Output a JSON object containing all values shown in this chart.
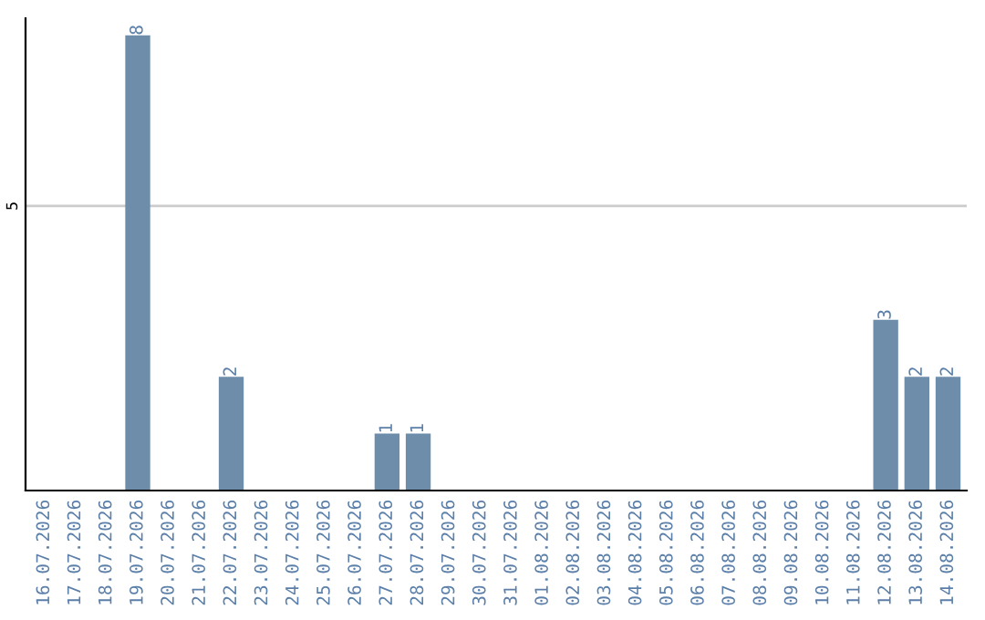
{
  "chart_data": {
    "type": "bar",
    "categories": [
      "16.07.2026",
      "17.07.2026",
      "18.07.2026",
      "19.07.2026",
      "20.07.2026",
      "21.07.2026",
      "22.07.2026",
      "23.07.2026",
      "24.07.2026",
      "25.07.2026",
      "26.07.2026",
      "27.07.2026",
      "28.07.2026",
      "29.07.2026",
      "30.07.2026",
      "31.07.2026",
      "01.08.2026",
      "02.08.2026",
      "03.08.2026",
      "04.08.2026",
      "05.08.2026",
      "06.08.2026",
      "07.08.2026",
      "08.08.2026",
      "09.08.2026",
      "10.08.2026",
      "11.08.2026",
      "12.08.2026",
      "13.08.2026",
      "14.08.2026"
    ],
    "values": [
      0,
      0,
      0,
      8,
      0,
      0,
      2,
      0,
      0,
      0,
      0,
      1,
      1,
      0,
      0,
      0,
      0,
      0,
      0,
      0,
      0,
      0,
      0,
      0,
      0,
      0,
      0,
      3,
      2,
      2
    ],
    "value_labels": [
      null,
      null,
      null,
      "8",
      null,
      null,
      "2",
      null,
      null,
      null,
      null,
      "1",
      "1",
      null,
      null,
      null,
      null,
      null,
      null,
      null,
      null,
      null,
      null,
      null,
      null,
      null,
      null,
      "3",
      "2",
      "2"
    ],
    "color": "#6e8dab",
    "ylim": [
      0,
      8.3
    ],
    "yticks": [
      5
    ],
    "grid": "y"
  }
}
